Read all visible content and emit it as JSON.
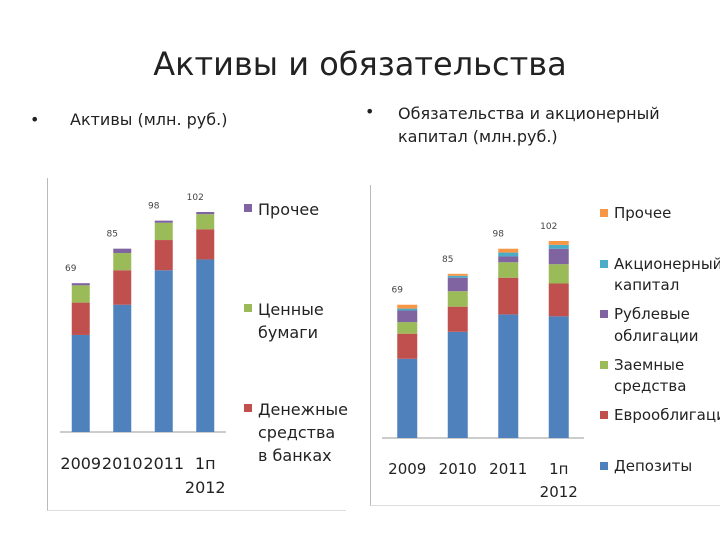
{
  "title": "Активы и обязательства",
  "chart_data": [
    {
      "type": "stacked_bar",
      "subtitle": "Активы (млн. руб.)",
      "categories": [
        "2009",
        "2010",
        "2011",
        "1п 2012"
      ],
      "total_labels": [
        69,
        85,
        98,
        102
      ],
      "series": [
        {
          "name": null,
          "color": "#4f81bd",
          "values": [
            45,
            59,
            75,
            80
          ]
        },
        {
          "name": "Денежные средства в банках",
          "color": "#c0504d",
          "values": [
            15,
            16,
            14,
            14
          ]
        },
        {
          "name": "Ценные бумаги",
          "color": "#9bbb59",
          "values": [
            8,
            8,
            8,
            7
          ]
        },
        {
          "name": "Прочее",
          "color": "#8064a2",
          "values": [
            1,
            2,
            1,
            1
          ]
        }
      ]
    },
    {
      "type": "stacked_bar",
      "subtitle": "Обязательства и акционерный капитал (млн.руб.)",
      "categories": [
        "2009",
        "2010",
        "2011",
        "1п 2012"
      ],
      "total_labels": [
        69,
        85,
        98,
        102
      ],
      "series": [
        {
          "name": "Депозиты",
          "color": "#4f81bd",
          "values": [
            41,
            55,
            64,
            63
          ]
        },
        {
          "name": "Еврооблигации",
          "color": "#c0504d",
          "values": [
            13,
            13,
            19,
            17
          ]
        },
        {
          "name": "Заемные средства",
          "color": "#9bbb59",
          "values": [
            6,
            8,
            8,
            10
          ]
        },
        {
          "name": "Рублевые облигации",
          "color": "#8064a2",
          "values": [
            6,
            7,
            3,
            8
          ]
        },
        {
          "name": "Акционерный капитал",
          "color": "#4bacc6",
          "values": [
            1,
            1,
            2,
            2
          ]
        },
        {
          "name": "Прочее",
          "color": "#f79646",
          "values": [
            2,
            1,
            2,
            2
          ]
        }
      ]
    }
  ]
}
